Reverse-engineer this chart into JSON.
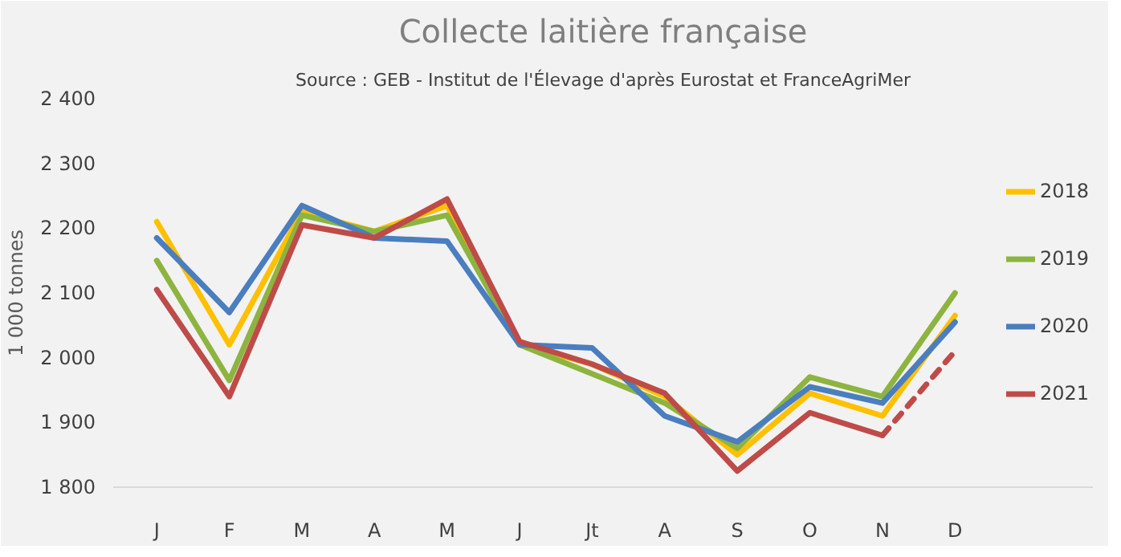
{
  "chart_data": {
    "type": "line",
    "title": "Collecte laitière française",
    "annotations": [
      "Source : GEB - Institut de l'Élevage d'après Eurostat et FranceAgriMer"
    ],
    "ylabel": "1 000 tonnes",
    "categories": [
      "J",
      "F",
      "M",
      "A",
      "M",
      "J",
      "Jt",
      "A",
      "S",
      "O",
      "N",
      "D"
    ],
    "series": [
      {
        "name": "2018",
        "color": "#ffc000",
        "values": [
          2210,
          2020,
          2225,
          2195,
          2235,
          2020,
          1990,
          1940,
          1850,
          1945,
          1910,
          2065
        ]
      },
      {
        "name": "2019",
        "color": "#8db43f",
        "values": [
          2150,
          1965,
          2220,
          2195,
          2220,
          2020,
          1975,
          1930,
          1860,
          1970,
          1940,
          2100
        ]
      },
      {
        "name": "2020",
        "color": "#4a7ebf",
        "values": [
          2185,
          2070,
          2235,
          2185,
          2180,
          2020,
          2015,
          1910,
          1870,
          1955,
          1930,
          2055
        ]
      },
      {
        "name": "2021",
        "color": "#be4b48",
        "values": [
          2105,
          1940,
          2205,
          2185,
          2245,
          2025,
          1990,
          1945,
          1825,
          1915,
          1880,
          null
        ]
      },
      {
        "color": "#be4b48",
        "line_style": "dashed",
        "values": [
          null,
          null,
          null,
          null,
          null,
          null,
          null,
          null,
          null,
          null,
          1880,
          2010
        ]
      }
    ],
    "ylim": [
      1800,
      2400
    ],
    "yticks": [
      {
        "value": 1800,
        "label": "1 800"
      },
      {
        "value": 1900,
        "label": "1 900"
      },
      {
        "value": 2000,
        "label": "2 000"
      },
      {
        "value": 2100,
        "label": "2 100"
      },
      {
        "value": 2200,
        "label": "2 200"
      },
      {
        "value": 2300,
        "label": "2 300"
      },
      {
        "value": 2400,
        "label": "2 400"
      }
    ],
    "grid": false,
    "legend": "right",
    "marker": "none",
    "line_style": "solid"
  }
}
